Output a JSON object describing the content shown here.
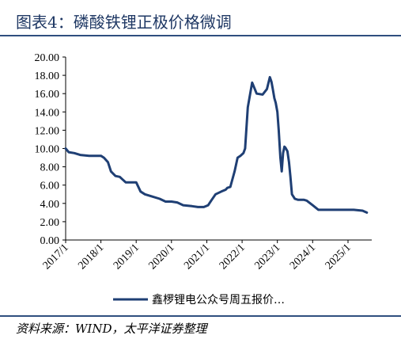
{
  "header": {
    "title": "图表4：磷酸铁锂正极价格微调"
  },
  "footer": {
    "source": "资料来源：WIND，太平洋证券整理"
  },
  "chart_data": {
    "type": "line",
    "title": "",
    "xlabel": "",
    "ylabel": "",
    "ylim": [
      0,
      20
    ],
    "yticks": [
      "20.00",
      "18.00",
      "16.00",
      "14.00",
      "12.00",
      "10.00",
      "8.00",
      "6.00",
      "4.00",
      "2.00",
      "0.00"
    ],
    "xticks": [
      "2017/1",
      "2018/1",
      "2019/1",
      "2020/1",
      "2021/1",
      "2022/1",
      "2023/1",
      "2024/1",
      "2025/1"
    ],
    "grid": false,
    "legend_position": "bottom",
    "series": [
      {
        "name": "鑫椤锂电公众号周五报价…",
        "color": "#1f3f74",
        "x": [
          "2017-01-01",
          "2017-02-01",
          "2017-04-01",
          "2017-06-01",
          "2017-09-01",
          "2017-11-01",
          "2018-01-01",
          "2018-02-01",
          "2018-03-15",
          "2018-04-15",
          "2018-06-01",
          "2018-07-15",
          "2018-08-15",
          "2018-09-15",
          "2018-11-01",
          "2019-01-01",
          "2019-02-15",
          "2019-04-01",
          "2019-06-01",
          "2019-09-01",
          "2019-11-01",
          "2020-01-01",
          "2020-03-01",
          "2020-05-01",
          "2020-08-01",
          "2020-10-01",
          "2020-12-01",
          "2021-01-15",
          "2021-02-15",
          "2021-04-01",
          "2021-06-01",
          "2021-07-15",
          "2021-08-01",
          "2021-09-01",
          "2021-10-15",
          "2021-11-15",
          "2021-12-15",
          "2022-01-15",
          "2022-02-01",
          "2022-03-01",
          "2022-04-15",
          "2022-06-01",
          "2022-08-01",
          "2022-09-15",
          "2022-10-15",
          "2022-11-01",
          "2022-11-15",
          "2022-12-01",
          "2022-12-15",
          "2023-01-01",
          "2023-01-15",
          "2023-02-01",
          "2023-02-15",
          "2023-03-01",
          "2023-03-15",
          "2023-03-25",
          "2023-04-15",
          "2023-05-01",
          "2023-05-15",
          "2023-06-01",
          "2023-07-01",
          "2023-08-01",
          "2023-09-01",
          "2023-10-01",
          "2023-11-01",
          "2024-01-01",
          "2024-03-01",
          "2024-05-01",
          "2024-07-01",
          "2024-09-01",
          "2024-10-01",
          "2024-12-01",
          "2025-03-01",
          "2025-06-01",
          "2025-07-15"
        ],
        "values": [
          10.0,
          9.6,
          9.5,
          9.3,
          9.2,
          9.2,
          9.2,
          9.0,
          8.5,
          7.5,
          7.0,
          6.9,
          6.6,
          6.3,
          6.3,
          6.3,
          5.3,
          5.0,
          4.8,
          4.5,
          4.2,
          4.2,
          4.1,
          3.8,
          3.7,
          3.6,
          3.6,
          3.8,
          4.3,
          5.0,
          5.3,
          5.5,
          5.7,
          5.8,
          7.5,
          9.0,
          9.2,
          9.5,
          10.0,
          14.5,
          17.2,
          16.0,
          15.9,
          16.5,
          17.8,
          17.3,
          16.5,
          15.5,
          15.0,
          14.0,
          12.0,
          9.0,
          7.5,
          9.5,
          10.2,
          10.1,
          9.7,
          8.5,
          7.0,
          5.0,
          4.5,
          4.4,
          4.4,
          4.4,
          4.3,
          3.8,
          3.3,
          3.3,
          3.3,
          3.3,
          3.3,
          3.3,
          3.3,
          3.2,
          3.0
        ]
      }
    ]
  }
}
